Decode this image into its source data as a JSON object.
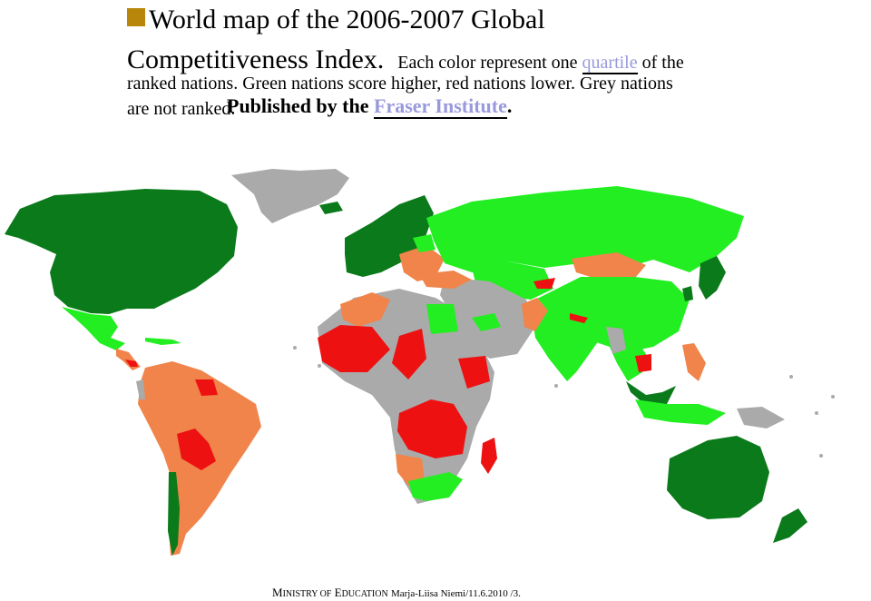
{
  "title": {
    "line1": "World map of the 2006-2007 Global",
    "line2": "Competitiveness Index.",
    "caption_start": "Each color represent one",
    "quartile_link": "quartile",
    "caption_after_link": "of the",
    "caption_line2": "ranked nations. Green nations score higher, red nations lower. Grey nations",
    "caption_line3": "are not ranked."
  },
  "published": {
    "prefix": "Published by the",
    "link": "Fraser Institute",
    "suffix": "."
  },
  "footer": {
    "m": "M",
    "inistry": "INISTRY OF",
    "e": "E",
    "ducation": "DUCATION",
    "author": "Marja-Liisa Niemi",
    "date": "/11.6.2010 /3."
  },
  "colors": {
    "bullet": "#b8860b",
    "top_quartile": "#0b7a1a",
    "second_quartile": "#22ee22",
    "third_quartile": "#f0844a",
    "bottom_quartile": "#ee1111",
    "not_ranked": "#aaaaaa"
  }
}
